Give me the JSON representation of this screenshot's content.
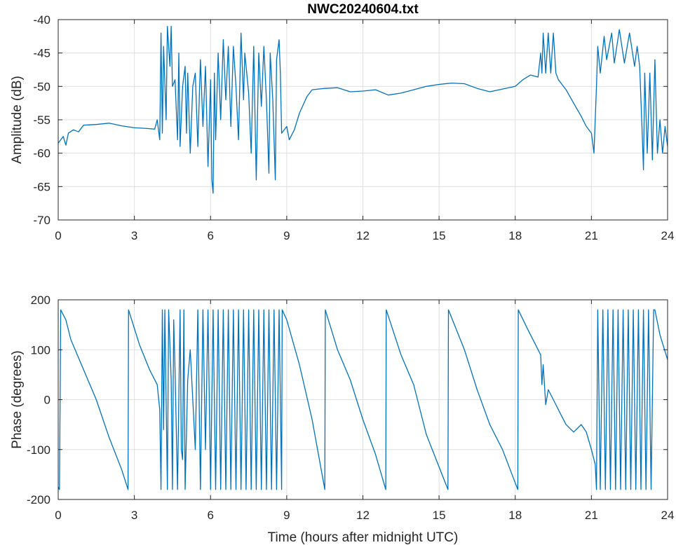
{
  "chart_data": [
    {
      "type": "line",
      "title": "NWC20240604.txt",
      "xlabel": "",
      "ylabel": "Amplitude (dB)",
      "xlim": [
        0,
        24
      ],
      "ylim": [
        -70,
        -40
      ],
      "xticks": [
        0,
        3,
        6,
        9,
        12,
        15,
        18,
        21,
        24
      ],
      "yticks": [
        -70,
        -65,
        -60,
        -55,
        -50,
        -45,
        -40
      ],
      "grid": true,
      "color": "#0072BD",
      "series": [
        {
          "name": "Amplitude",
          "points": [
            [
              0,
              -58.5
            ],
            [
              0.2,
              -57.5
            ],
            [
              0.3,
              -58.8
            ],
            [
              0.4,
              -57
            ],
            [
              0.6,
              -56.5
            ],
            [
              0.8,
              -56.8
            ],
            [
              1,
              -55.8
            ],
            [
              1.5,
              -55.7
            ],
            [
              2,
              -55.5
            ],
            [
              2.5,
              -55.9
            ],
            [
              3,
              -56.2
            ],
            [
              3.5,
              -56.3
            ],
            [
              3.8,
              -56.4
            ],
            [
              3.9,
              -55
            ],
            [
              4.0,
              -58
            ],
            [
              4.05,
              -42
            ],
            [
              4.1,
              -57
            ],
            [
              4.15,
              -44
            ],
            [
              4.25,
              -55
            ],
            [
              4.3,
              -41
            ],
            [
              4.4,
              -47
            ],
            [
              4.45,
              -41
            ],
            [
              4.5,
              -50
            ],
            [
              4.6,
              -49
            ],
            [
              4.7,
              -58
            ],
            [
              4.75,
              -45
            ],
            [
              4.8,
              -59
            ],
            [
              4.9,
              -50
            ],
            [
              5,
              -47
            ],
            [
              5.05,
              -57
            ],
            [
              5.1,
              -48
            ],
            [
              5.2,
              -60
            ],
            [
              5.3,
              -50
            ],
            [
              5.4,
              -48
            ],
            [
              5.5,
              -59
            ],
            [
              5.6,
              -46
            ],
            [
              5.7,
              -56
            ],
            [
              5.8,
              -47
            ],
            [
              5.9,
              -62
            ],
            [
              6.0,
              -49
            ],
            [
              6.05,
              -64
            ],
            [
              6.1,
              -66
            ],
            [
              6.15,
              -48
            ],
            [
              6.2,
              -58
            ],
            [
              6.3,
              -45
            ],
            [
              6.4,
              -55
            ],
            [
              6.5,
              -43
            ],
            [
              6.6,
              -52
            ],
            [
              6.7,
              -44
            ],
            [
              6.8,
              -56
            ],
            [
              6.9,
              -44
            ],
            [
              7,
              -50
            ],
            [
              7.1,
              -58
            ],
            [
              7.2,
              -42
            ],
            [
              7.3,
              -52
            ],
            [
              7.35,
              -45
            ],
            [
              7.5,
              -51
            ],
            [
              7.6,
              -60
            ],
            [
              7.7,
              -44
            ],
            [
              7.8,
              -64
            ],
            [
              7.9,
              -45
            ],
            [
              8.0,
              -53
            ],
            [
              8.1,
              -44
            ],
            [
              8.2,
              -52
            ],
            [
              8.3,
              -63
            ],
            [
              8.35,
              -45
            ],
            [
              8.45,
              -52
            ],
            [
              8.55,
              -64
            ],
            [
              8.6,
              -46
            ],
            [
              8.7,
              -43
            ],
            [
              8.75,
              -48
            ],
            [
              8.8,
              -57
            ],
            [
              9.0,
              -56
            ],
            [
              9.1,
              -58
            ],
            [
              9.3,
              -56.5
            ],
            [
              9.5,
              -54
            ],
            [
              9.8,
              -51.5
            ],
            [
              10,
              -50.5
            ],
            [
              10.5,
              -50.3
            ],
            [
              11,
              -50.2
            ],
            [
              11.5,
              -50.8
            ],
            [
              12,
              -50.7
            ],
            [
              12.5,
              -50.5
            ],
            [
              13,
              -51.3
            ],
            [
              13.5,
              -51
            ],
            [
              14,
              -50.5
            ],
            [
              14.5,
              -50
            ],
            [
              15,
              -49.7
            ],
            [
              15.5,
              -49.5
            ],
            [
              16,
              -49.6
            ],
            [
              16.5,
              -50.3
            ],
            [
              17,
              -50.8
            ],
            [
              17.5,
              -50.4
            ],
            [
              18,
              -50
            ],
            [
              18.3,
              -49
            ],
            [
              18.6,
              -48.3
            ],
            [
              18.9,
              -48.6
            ],
            [
              19,
              -45
            ],
            [
              19.05,
              -48
            ],
            [
              19.1,
              -42
            ],
            [
              19.2,
              -48
            ],
            [
              19.3,
              -42
            ],
            [
              19.4,
              -48
            ],
            [
              19.5,
              -42
            ],
            [
              19.6,
              -48
            ],
            [
              19.7,
              -49
            ],
            [
              20,
              -50.5
            ],
            [
              20.3,
              -52.5
            ],
            [
              20.6,
              -54.5
            ],
            [
              20.8,
              -56
            ],
            [
              21,
              -57
            ],
            [
              21.1,
              -60
            ],
            [
              21.2,
              -50
            ],
            [
              21.25,
              -44
            ],
            [
              21.35,
              -48
            ],
            [
              21.5,
              -42.5
            ],
            [
              21.6,
              -46
            ],
            [
              21.8,
              -42
            ],
            [
              21.9,
              -46.5
            ],
            [
              22.1,
              -41.5
            ],
            [
              22.3,
              -46.5
            ],
            [
              22.5,
              -42
            ],
            [
              22.7,
              -47
            ],
            [
              22.8,
              -44
            ],
            [
              22.9,
              -47
            ],
            [
              23.0,
              -57
            ],
            [
              23.05,
              -62.5
            ],
            [
              23.1,
              -48
            ],
            [
              23.2,
              -60
            ],
            [
              23.3,
              -48
            ],
            [
              23.4,
              -61
            ],
            [
              23.5,
              -46
            ],
            [
              23.6,
              -60
            ],
            [
              23.7,
              -55
            ],
            [
              23.8,
              -60
            ],
            [
              23.9,
              -56
            ],
            [
              24,
              -59
            ]
          ]
        }
      ]
    },
    {
      "type": "line",
      "title": "",
      "xlabel": "Time (hours after midnight UTC)",
      "ylabel": "Phase (degrees)",
      "xlim": [
        0,
        24
      ],
      "ylim": [
        -200,
        200
      ],
      "xticks": [
        0,
        3,
        6,
        9,
        12,
        15,
        18,
        21,
        24
      ],
      "yticks": [
        -200,
        -100,
        0,
        100,
        200
      ],
      "grid": true,
      "color": "#0072BD",
      "series": [
        {
          "name": "Phase",
          "points": [
            [
              0,
              -175
            ],
            [
              0.05,
              -180
            ],
            [
              0.1,
              180
            ],
            [
              0.3,
              160
            ],
            [
              0.5,
              120
            ],
            [
              1,
              60
            ],
            [
              1.5,
              0
            ],
            [
              2,
              -75
            ],
            [
              2.5,
              -140
            ],
            [
              2.75,
              -180
            ],
            [
              2.77,
              180
            ],
            [
              3.2,
              110
            ],
            [
              3.6,
              60
            ],
            [
              3.9,
              30
            ],
            [
              4.0,
              -20
            ],
            [
              4.05,
              -180
            ],
            [
              4.1,
              180
            ],
            [
              4.15,
              -60
            ],
            [
              4.2,
              180
            ],
            [
              4.3,
              -180
            ],
            [
              4.35,
              180
            ],
            [
              4.45,
              40
            ],
            [
              4.5,
              -180
            ],
            [
              4.55,
              160
            ],
            [
              4.6,
              60
            ],
            [
              4.7,
              -180
            ],
            [
              4.8,
              180
            ],
            [
              4.85,
              -100
            ],
            [
              4.9,
              -120
            ],
            [
              4.95,
              180
            ],
            [
              5.0,
              -180
            ],
            [
              5.1,
              40
            ],
            [
              5.2,
              100
            ],
            [
              5.3,
              0
            ],
            [
              5.4,
              -100
            ],
            [
              5.5,
              180
            ],
            [
              5.6,
              -180
            ],
            [
              5.7,
              180
            ],
            [
              5.8,
              -100
            ],
            [
              5.9,
              180
            ],
            [
              6.0,
              -180
            ],
            [
              6.1,
              180
            ],
            [
              6.2,
              -180
            ],
            [
              6.3,
              180
            ],
            [
              6.4,
              -180
            ],
            [
              6.5,
              180
            ],
            [
              6.6,
              -180
            ],
            [
              6.7,
              180
            ],
            [
              6.8,
              -180
            ],
            [
              6.9,
              180
            ],
            [
              7.0,
              -180
            ],
            [
              7.1,
              180
            ],
            [
              7.2,
              -180
            ],
            [
              7.3,
              180
            ],
            [
              7.4,
              -180
            ],
            [
              7.5,
              180
            ],
            [
              7.6,
              -180
            ],
            [
              7.7,
              180
            ],
            [
              7.8,
              -180
            ],
            [
              7.9,
              180
            ],
            [
              8.0,
              -180
            ],
            [
              8.1,
              180
            ],
            [
              8.2,
              -180
            ],
            [
              8.3,
              180
            ],
            [
              8.4,
              -180
            ],
            [
              8.5,
              180
            ],
            [
              8.6,
              -180
            ],
            [
              8.7,
              180
            ],
            [
              8.8,
              -180
            ],
            [
              8.82,
              180
            ],
            [
              9,
              160
            ],
            [
              9.5,
              70
            ],
            [
              10,
              -40
            ],
            [
              10.5,
              -180
            ],
            [
              10.52,
              180
            ],
            [
              11,
              100
            ],
            [
              11.5,
              40
            ],
            [
              12,
              -40
            ],
            [
              12.5,
              -110
            ],
            [
              12.9,
              -180
            ],
            [
              12.92,
              180
            ],
            [
              13.5,
              90
            ],
            [
              14,
              30
            ],
            [
              14.5,
              -70
            ],
            [
              15.35,
              -180
            ],
            [
              15.37,
              180
            ],
            [
              16,
              100
            ],
            [
              16.5,
              20
            ],
            [
              17,
              -50
            ],
            [
              17.5,
              -100
            ],
            [
              18.1,
              -180
            ],
            [
              18.12,
              180
            ],
            [
              18.5,
              140
            ],
            [
              19,
              90
            ],
            [
              19.05,
              30
            ],
            [
              19.1,
              70
            ],
            [
              19.2,
              -10
            ],
            [
              19.3,
              20
            ],
            [
              19.5,
              0
            ],
            [
              19.8,
              -30
            ],
            [
              20,
              -50
            ],
            [
              20.3,
              -65
            ],
            [
              20.6,
              -50
            ],
            [
              20.8,
              -65
            ],
            [
              21,
              -100
            ],
            [
              21.15,
              -130
            ],
            [
              21.2,
              -180
            ],
            [
              21.25,
              180
            ],
            [
              21.35,
              -180
            ],
            [
              21.45,
              180
            ],
            [
              21.55,
              -180
            ],
            [
              21.65,
              180
            ],
            [
              21.75,
              -180
            ],
            [
              21.85,
              180
            ],
            [
              21.95,
              -180
            ],
            [
              22.05,
              180
            ],
            [
              22.15,
              -180
            ],
            [
              22.25,
              180
            ],
            [
              22.35,
              -180
            ],
            [
              22.45,
              180
            ],
            [
              22.55,
              -180
            ],
            [
              22.65,
              180
            ],
            [
              22.75,
              -180
            ],
            [
              22.85,
              180
            ],
            [
              22.95,
              -180
            ],
            [
              23.05,
              180
            ],
            [
              23.15,
              -180
            ],
            [
              23.25,
              180
            ],
            [
              23.35,
              -180
            ],
            [
              23.45,
              180
            ],
            [
              23.5,
              180
            ],
            [
              23.7,
              130
            ],
            [
              24,
              80
            ]
          ]
        }
      ]
    }
  ]
}
